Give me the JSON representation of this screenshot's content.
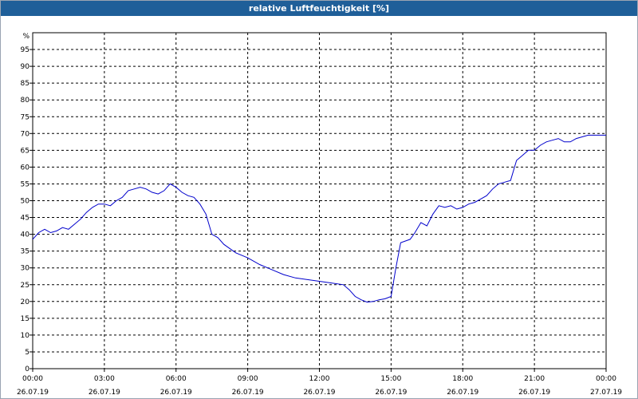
{
  "window": {
    "title": "relative Luftfeuchtigkeit [%]"
  },
  "chart_data": {
    "type": "line",
    "title": "relative Luftfeuchtigkeit [%]",
    "ylabel": "%",
    "xlabel": "",
    "xlim": [
      0,
      24
    ],
    "ylim": [
      0,
      100
    ],
    "y_ticks": [
      "0",
      "5",
      "10",
      "15",
      "20",
      "25",
      "30",
      "35",
      "40",
      "45",
      "50",
      "55",
      "60",
      "65",
      "70",
      "75",
      "80",
      "85",
      "90",
      "95"
    ],
    "y_unit_label": "%",
    "x_ticks": [
      {
        "time": "00:00",
        "date": "26.07.19"
      },
      {
        "time": "03:00",
        "date": "26.07.19"
      },
      {
        "time": "06:00",
        "date": "26.07.19"
      },
      {
        "time": "09:00",
        "date": "26.07.19"
      },
      {
        "time": "12:00",
        "date": "26.07.19"
      },
      {
        "time": "15:00",
        "date": "26.07.19"
      },
      {
        "time": "18:00",
        "date": "26.07.19"
      },
      {
        "time": "21:00",
        "date": "26.07.19"
      },
      {
        "time": "00:00",
        "date": "27.07.19"
      }
    ],
    "grid": true,
    "grid_style": "dashed",
    "line_color": "#0000cc",
    "series": [
      {
        "x": [
          0.0,
          0.25,
          0.5,
          0.75,
          1.0,
          1.25,
          1.5,
          1.75,
          2.0,
          2.25,
          2.5,
          2.75,
          3.0,
          3.25,
          3.5,
          3.75,
          4.0,
          4.25,
          4.5,
          4.75,
          5.0,
          5.25,
          5.5,
          5.75,
          6.0,
          6.25,
          6.5,
          6.75,
          7.0,
          7.25,
          7.5,
          7.75,
          8.0,
          8.5,
          9.0,
          9.5,
          10.0,
          10.5,
          11.0,
          11.5,
          12.0,
          12.5,
          13.0,
          13.25,
          13.5,
          13.75,
          14.0,
          14.25,
          14.5,
          14.75,
          15.0,
          15.2,
          15.4,
          15.6,
          15.8,
          16.0,
          16.25,
          16.5,
          16.75,
          17.0,
          17.25,
          17.5,
          17.75,
          18.0,
          18.25,
          18.5,
          18.75,
          19.0,
          19.25,
          19.5,
          19.75,
          20.0,
          20.25,
          20.5,
          20.75,
          21.0,
          21.25,
          21.5,
          21.75,
          22.0,
          22.25,
          22.5,
          22.75,
          23.0,
          23.25,
          23.5,
          23.75,
          24.0
        ],
        "y": [
          38.5,
          40.5,
          41.5,
          40.5,
          41.0,
          42.0,
          41.5,
          43.0,
          44.5,
          46.5,
          48.0,
          49.0,
          49.0,
          48.5,
          50.0,
          51.0,
          53.0,
          53.5,
          54.0,
          53.5,
          52.5,
          52.0,
          53.0,
          55.0,
          54.0,
          52.5,
          51.5,
          51.0,
          49.0,
          46.0,
          40.0,
          39.0,
          37.0,
          34.5,
          33.0,
          31.0,
          29.5,
          28.0,
          27.0,
          26.5,
          26.0,
          25.5,
          25.0,
          23.5,
          21.5,
          20.5,
          19.8,
          20.0,
          20.5,
          20.8,
          21.5,
          30.0,
          37.5,
          38.0,
          38.5,
          40.5,
          43.5,
          42.5,
          46.0,
          48.5,
          48.0,
          48.5,
          47.5,
          48.0,
          49.0,
          49.5,
          50.5,
          51.5,
          53.5,
          55.0,
          55.5,
          56.0,
          62.0,
          63.5,
          65.0,
          65.0,
          66.5,
          67.5,
          68.0,
          68.5,
          67.5,
          67.5,
          68.5,
          69.0,
          69.5,
          69.5,
          69.5,
          69.5
        ]
      }
    ]
  }
}
